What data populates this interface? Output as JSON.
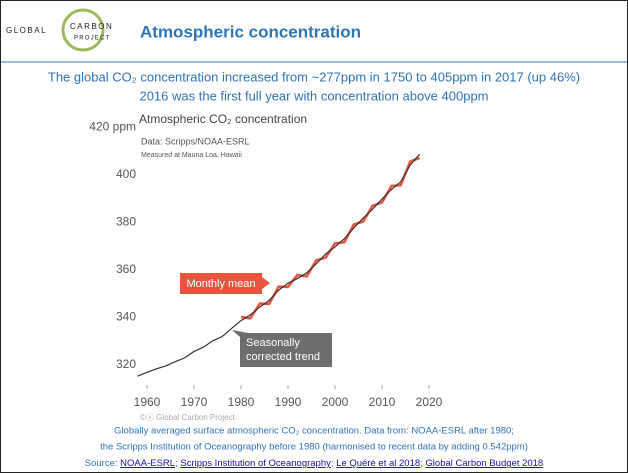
{
  "logo": {
    "line1": "GLOBAL",
    "line2": "CARBON",
    "line3": "PROJECT"
  },
  "header": {
    "title": "Atmospheric concentration"
  },
  "subtitle": [
    "The global CO₂ concentration increased from ~277ppm in 1750 to 405ppm in 2017 (up 46%)",
    "2016 was the first full year with concentration above 400ppm"
  ],
  "chart_data": {
    "type": "line",
    "title": "Atmospheric CO₂ concentration",
    "notes": [
      "Data: Scripps/NOAA-ESRL",
      "Measured at Mauna Loa, Hawaii"
    ],
    "credit": "©ⓐ Global Carbon Project",
    "x": [
      1958,
      1960,
      1962,
      1964,
      1966,
      1968,
      1970,
      1972,
      1974,
      1976,
      1978,
      1980,
      1982,
      1984,
      1986,
      1988,
      1990,
      1992,
      1994,
      1996,
      1998,
      2000,
      2002,
      2004,
      2006,
      2008,
      2010,
      2012,
      2014,
      2016,
      2018
    ],
    "series": [
      {
        "name": "Monthly mean",
        "color": "#e8553e",
        "values": [
          null,
          null,
          null,
          null,
          null,
          null,
          null,
          null,
          null,
          null,
          null,
          340.2,
          339.6,
          345.9,
          345.7,
          353.0,
          352.9,
          357.9,
          357.3,
          364.1,
          365.2,
          371.2,
          371.7,
          379.2,
          380.4,
          387.1,
          388.4,
          395.4,
          395.7,
          405.7,
          407.2
        ]
      },
      {
        "name": "Seasonally corrected trend",
        "color": "#333333",
        "values": [
          315.3,
          316.9,
          318.4,
          319.6,
          321.4,
          323.0,
          325.7,
          327.5,
          330.2,
          332.0,
          335.4,
          338.7,
          341.1,
          344.4,
          347.2,
          351.5,
          354.4,
          356.4,
          358.8,
          362.6,
          366.7,
          369.7,
          373.2,
          377.7,
          381.9,
          385.6,
          389.9,
          393.9,
          397.2,
          404.2,
          408.7
        ]
      }
    ],
    "xlim": [
      1956,
      2022
    ],
    "xticks": [
      1960,
      1970,
      1980,
      1990,
      2000,
      2010,
      2020
    ],
    "ylim": [
      314,
      422
    ],
    "yticks": [
      320,
      340,
      360,
      380,
      400,
      {
        "value": 420,
        "label": "420 ppm"
      }
    ]
  },
  "caption": [
    "Globally averaged surface atmospheric CO₂ concentration. Data from: NOAA-ESRL after 1980;",
    "the Scripps Institution of Oceanography before 1980 (harmonised to recent data by adding 0.542ppm)"
  ],
  "source": {
    "label": "Source:",
    "separator": ";",
    "links": [
      "NOAA-ESRL",
      "Scripps Institution of Oceanography",
      "Le Quéré et al 2018",
      "Global Carbon Budget 2018"
    ]
  }
}
